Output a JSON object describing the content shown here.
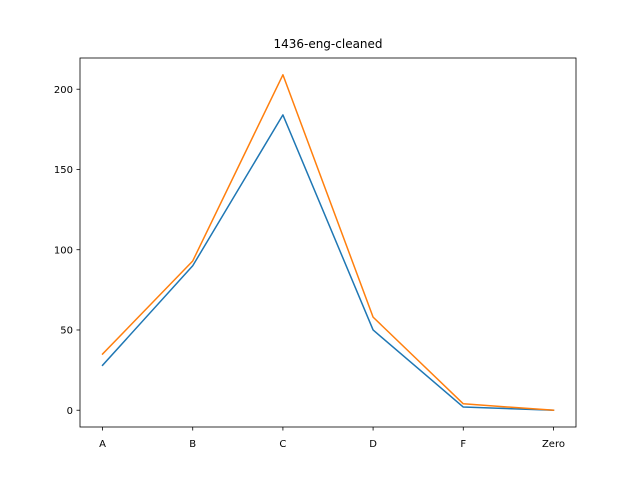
{
  "chart_data": {
    "type": "line",
    "title": "1436-eng-cleaned",
    "xlabel": "",
    "ylabel": "",
    "categories": [
      "A",
      "B",
      "C",
      "D",
      "F",
      "Zero"
    ],
    "series": [
      {
        "values": [
          28,
          90,
          184,
          50,
          2,
          0
        ],
        "color": "#1f77b4"
      },
      {
        "values": [
          35,
          93,
          209,
          58,
          4,
          0
        ],
        "color": "#ff7f0e"
      }
    ],
    "ylim": [
      -10.45,
      219.45
    ],
    "yticks": [
      0,
      50,
      100,
      150,
      200
    ],
    "grid": false,
    "legend": "none"
  }
}
